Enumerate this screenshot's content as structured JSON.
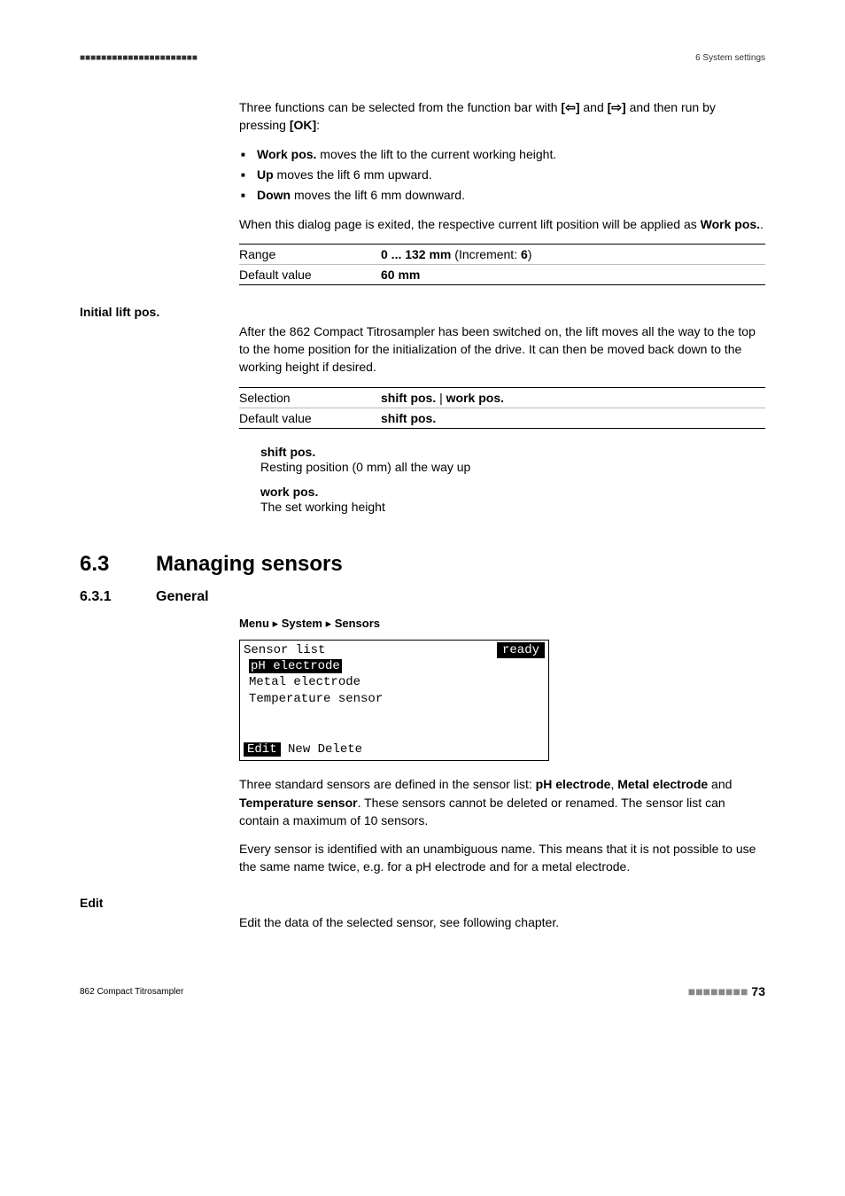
{
  "header": {
    "left_marks": "■■■■■■■■■■■■■■■■■■■■■■",
    "right": "6 System settings"
  },
  "intro": {
    "line1_pre": "Three functions can be selected from the function bar with ",
    "key1": "[⇦]",
    "mid": " and ",
    "key2": "[⇨]",
    "line1_post": " and then run by pressing ",
    "key3": "[OK]",
    "colon": ":"
  },
  "bullets": {
    "b1_term": "Work pos.",
    "b1_rest": " moves the lift to the current working height.",
    "b2_term": "Up",
    "b2_rest": " moves the lift 6 mm upward.",
    "b3_term": "Down",
    "b3_rest": " moves the lift 6 mm downward."
  },
  "exit_note": {
    "pre": "When this dialog page is exited, the respective current lift position will be applied as ",
    "bold": "Work pos.",
    "post": "."
  },
  "range_table": {
    "r1_label": "Range",
    "r1_val_bold": "0 ... 132 mm",
    "r1_val_rest_pre": " (Increment: ",
    "r1_val_inc": "6",
    "r1_val_rest_post": ")",
    "r2_label": "Default value",
    "r2_val": "60 mm"
  },
  "initial_lift": {
    "heading": "Initial lift pos.",
    "para": "After the 862 Compact Titrosampler has been switched on, the lift moves all the way to the top to the home position for the initialization of the drive. It can then be moved back down to the working height if desired.",
    "t_r1_label": "Selection",
    "t_r1_val_a": "shift pos.",
    "t_r1_sep": " | ",
    "t_r1_val_b": "work pos.",
    "t_r2_label": "Default value",
    "t_r2_val": "shift pos.",
    "def1_term": "shift pos.",
    "def1_desc": "Resting position (0 mm) all the way up",
    "def2_term": "work pos.",
    "def2_desc": "The set working height"
  },
  "section": {
    "num": "6.3",
    "title": "Managing sensors",
    "sub_num": "6.3.1",
    "sub_title": "General",
    "menu_label": "Menu",
    "menu_sep": " ▸ ",
    "menu_a": "System",
    "menu_b": "Sensors"
  },
  "lcd": {
    "title": "Sensor list",
    "status": "ready",
    "row_sel": "pH electrode",
    "row2": "Metal electrode",
    "row3": "Temperature sensor",
    "foot_sel": "Edit",
    "foot_rest": " New Delete"
  },
  "sensors_para1": {
    "pre": "Three standard sensors are defined in the sensor list: ",
    "b1": "pH electrode",
    "mid1": ", ",
    "b2": "Metal electrode",
    "mid2": " and ",
    "b3": "Temperature sensor",
    "post": ". These sensors cannot be deleted or renamed. The sensor list can contain a maximum of 10 sensors."
  },
  "sensors_para2": "Every sensor is identified with an unambiguous name. This means that it is not possible to use the same name twice, e.g. for a pH electrode and for a metal electrode.",
  "edit": {
    "heading": "Edit",
    "desc": "Edit the data of the selected sensor, see following chapter."
  },
  "footer": {
    "left": "862 Compact Titrosampler",
    "dots": "■■■■■■■■",
    "page": "73"
  }
}
